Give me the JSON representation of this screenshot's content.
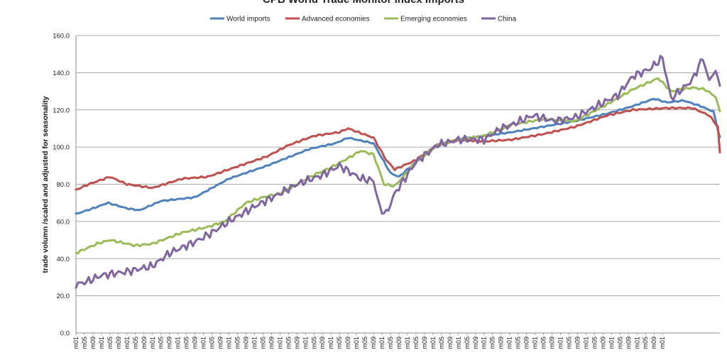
{
  "chart_data": {
    "type": "line",
    "title": "CPB World Trade Monitor Index Imports",
    "ylabel": "trade volumn /scaled and adjusted for seasonality",
    "xlabel": "",
    "ylim": [
      0,
      160
    ],
    "yticks": [
      "0.0",
      "20.0",
      "40.0",
      "60.0",
      "80.0",
      "100.0",
      "120.0",
      "140.0",
      "160.0"
    ],
    "x_ticks": [
      "m01",
      "m05",
      "m09",
      "m01",
      "m05",
      "m09",
      "m01",
      "m05",
      "m09",
      "m01",
      "m05",
      "m09",
      "m01",
      "m05",
      "m09",
      "m01",
      "m05",
      "m09",
      "m01",
      "m05",
      "m09",
      "m01",
      "m05",
      "m09",
      "m01",
      "m05",
      "m09",
      "m01",
      "m05",
      "m09",
      "m01",
      "m05",
      "m09",
      "m01",
      "m05",
      "m09",
      "m01",
      "m05",
      "m09",
      "m01",
      "m05",
      "m09",
      "m01",
      "m05",
      "m09",
      "m01",
      "m05",
      "m09",
      "m01",
      "m05",
      "m09",
      "m01",
      "m05",
      "m09",
      "m01",
      "m05",
      "m09",
      "m01",
      "m05",
      "m09",
      "m01",
      "m05",
      "m09",
      "m01",
      "m05",
      "m09",
      "m01",
      "m05",
      "m09",
      "m01"
    ],
    "grid": true,
    "legend_position": "top",
    "series": [
      {
        "name": "World imports",
        "color": "#4f81bd",
        "keypoints": [
          [
            0,
            64
          ],
          [
            8,
            67
          ],
          [
            15,
            70
          ],
          [
            24,
            67
          ],
          [
            30,
            66
          ],
          [
            40,
            71
          ],
          [
            56,
            73
          ],
          [
            72,
            83
          ],
          [
            90,
            90
          ],
          [
            110,
            99
          ],
          [
            122,
            102
          ],
          [
            128,
            105
          ],
          [
            140,
            102
          ],
          [
            148,
            86
          ],
          [
            152,
            84
          ],
          [
            160,
            92
          ],
          [
            170,
            101
          ],
          [
            180,
            104
          ],
          [
            192,
            106
          ],
          [
            205,
            108
          ],
          [
            220,
            111
          ],
          [
            235,
            114
          ],
          [
            250,
            118
          ],
          [
            262,
            122
          ],
          [
            272,
            126
          ],
          [
            278,
            124
          ],
          [
            286,
            125
          ],
          [
            294,
            122
          ],
          [
            300,
            119
          ],
          [
            303,
            105
          ]
        ]
      },
      {
        "name": "Advanced economies",
        "color": "#c0504d",
        "keypoints": [
          [
            0,
            77
          ],
          [
            6,
            80
          ],
          [
            16,
            84
          ],
          [
            24,
            80
          ],
          [
            36,
            78
          ],
          [
            50,
            83
          ],
          [
            62,
            84
          ],
          [
            72,
            88
          ],
          [
            90,
            95
          ],
          [
            100,
            101
          ],
          [
            112,
            106
          ],
          [
            124,
            108
          ],
          [
            128,
            110
          ],
          [
            140,
            105
          ],
          [
            146,
            93
          ],
          [
            150,
            88
          ],
          [
            160,
            93
          ],
          [
            170,
            101
          ],
          [
            180,
            104
          ],
          [
            192,
            103
          ],
          [
            205,
            104
          ],
          [
            220,
            107
          ],
          [
            235,
            111
          ],
          [
            250,
            117
          ],
          [
            262,
            120
          ],
          [
            278,
            121
          ],
          [
            290,
            121
          ],
          [
            298,
            117
          ],
          [
            302,
            111
          ],
          [
            303,
            97
          ]
        ]
      },
      {
        "name": "Emerging economies",
        "color": "#9bbb59",
        "keypoints": [
          [
            0,
            43
          ],
          [
            10,
            48
          ],
          [
            16,
            50
          ],
          [
            28,
            47
          ],
          [
            36,
            48
          ],
          [
            50,
            54
          ],
          [
            62,
            57
          ],
          [
            70,
            60
          ],
          [
            80,
            70
          ],
          [
            88,
            73
          ],
          [
            96,
            75
          ],
          [
            104,
            80
          ],
          [
            112,
            85
          ],
          [
            120,
            89
          ],
          [
            128,
            94
          ],
          [
            134,
            98
          ],
          [
            140,
            96
          ],
          [
            145,
            80
          ],
          [
            150,
            79
          ],
          [
            160,
            92
          ],
          [
            170,
            101
          ],
          [
            180,
            104
          ],
          [
            192,
            106
          ],
          [
            205,
            112
          ],
          [
            220,
            115
          ],
          [
            235,
            114
          ],
          [
            250,
            123
          ],
          [
            262,
            131
          ],
          [
            274,
            137
          ],
          [
            280,
            130
          ],
          [
            290,
            132
          ],
          [
            296,
            131
          ],
          [
            301,
            127
          ],
          [
            303,
            119
          ]
        ]
      },
      {
        "name": "China",
        "color": "#8064a2",
        "keypoints": [
          [
            0,
            26
          ],
          [
            6,
            28
          ],
          [
            12,
            31
          ],
          [
            24,
            33
          ],
          [
            36,
            36
          ],
          [
            44,
            43
          ],
          [
            56,
            49
          ],
          [
            64,
            54
          ],
          [
            72,
            60
          ],
          [
            84,
            68
          ],
          [
            96,
            75
          ],
          [
            104,
            80
          ],
          [
            116,
            85
          ],
          [
            124,
            90
          ],
          [
            134,
            83
          ],
          [
            140,
            82
          ],
          [
            143,
            67
          ],
          [
            146,
            64
          ],
          [
            150,
            75
          ],
          [
            160,
            92
          ],
          [
            170,
            101
          ],
          [
            180,
            104
          ],
          [
            192,
            104
          ],
          [
            200,
            110
          ],
          [
            205,
            112
          ],
          [
            215,
            117
          ],
          [
            225,
            114
          ],
          [
            235,
            116
          ],
          [
            245,
            122
          ],
          [
            255,
            128
          ],
          [
            262,
            138
          ],
          [
            270,
            142
          ],
          [
            276,
            148
          ],
          [
            280,
            126
          ],
          [
            290,
            136
          ],
          [
            295,
            148
          ],
          [
            298,
            135
          ],
          [
            300,
            141
          ],
          [
            303,
            135
          ]
        ]
      }
    ]
  }
}
